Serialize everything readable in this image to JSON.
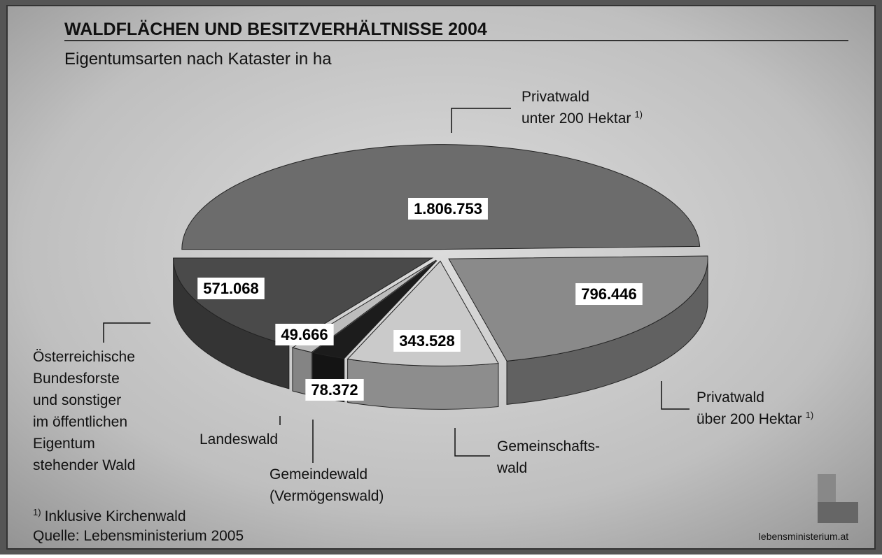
{
  "chart_data": {
    "type": "pie3d",
    "title": "WALDFLÄCHEN UND BESITZVERHÄLTNISSE 2004",
    "subtitle": "Eigentumsarten nach Kataster in ha",
    "categories": [
      [
        "Privatwald",
        "unter 200 Hektar"
      ],
      [
        "Privatwald",
        "über 200 Hektar"
      ],
      [
        "Gemeinschafts-",
        "wald"
      ],
      [
        "Gemeindewald",
        "(Vermögenswald)"
      ],
      [
        "Landeswald"
      ],
      [
        "Österreichische",
        "Bundesforste",
        "und sonstiger",
        "im öffentlichen",
        "Eigentum",
        "stehender Wald"
      ]
    ],
    "category_marks": [
      "1)",
      "1)",
      null,
      null,
      null,
      null
    ],
    "values": [
      1806753,
      796446,
      343528,
      78372,
      49666,
      571068
    ],
    "value_labels": [
      "1.806.753",
      "796.446",
      "343.528",
      "78.372",
      "49.666",
      "571.068"
    ],
    "colors": [
      "#6c6c6c",
      "#8a8a8a",
      "#cacaca",
      "#1c1c1c",
      "#bdbdbd",
      "#4a4a4a"
    ],
    "footnote": {
      "mark": "1)",
      "text": "Inklusive Kirchenwald"
    },
    "source": "Quelle: Lebensministerium 2005",
    "logo": "lebensministerium.at"
  }
}
